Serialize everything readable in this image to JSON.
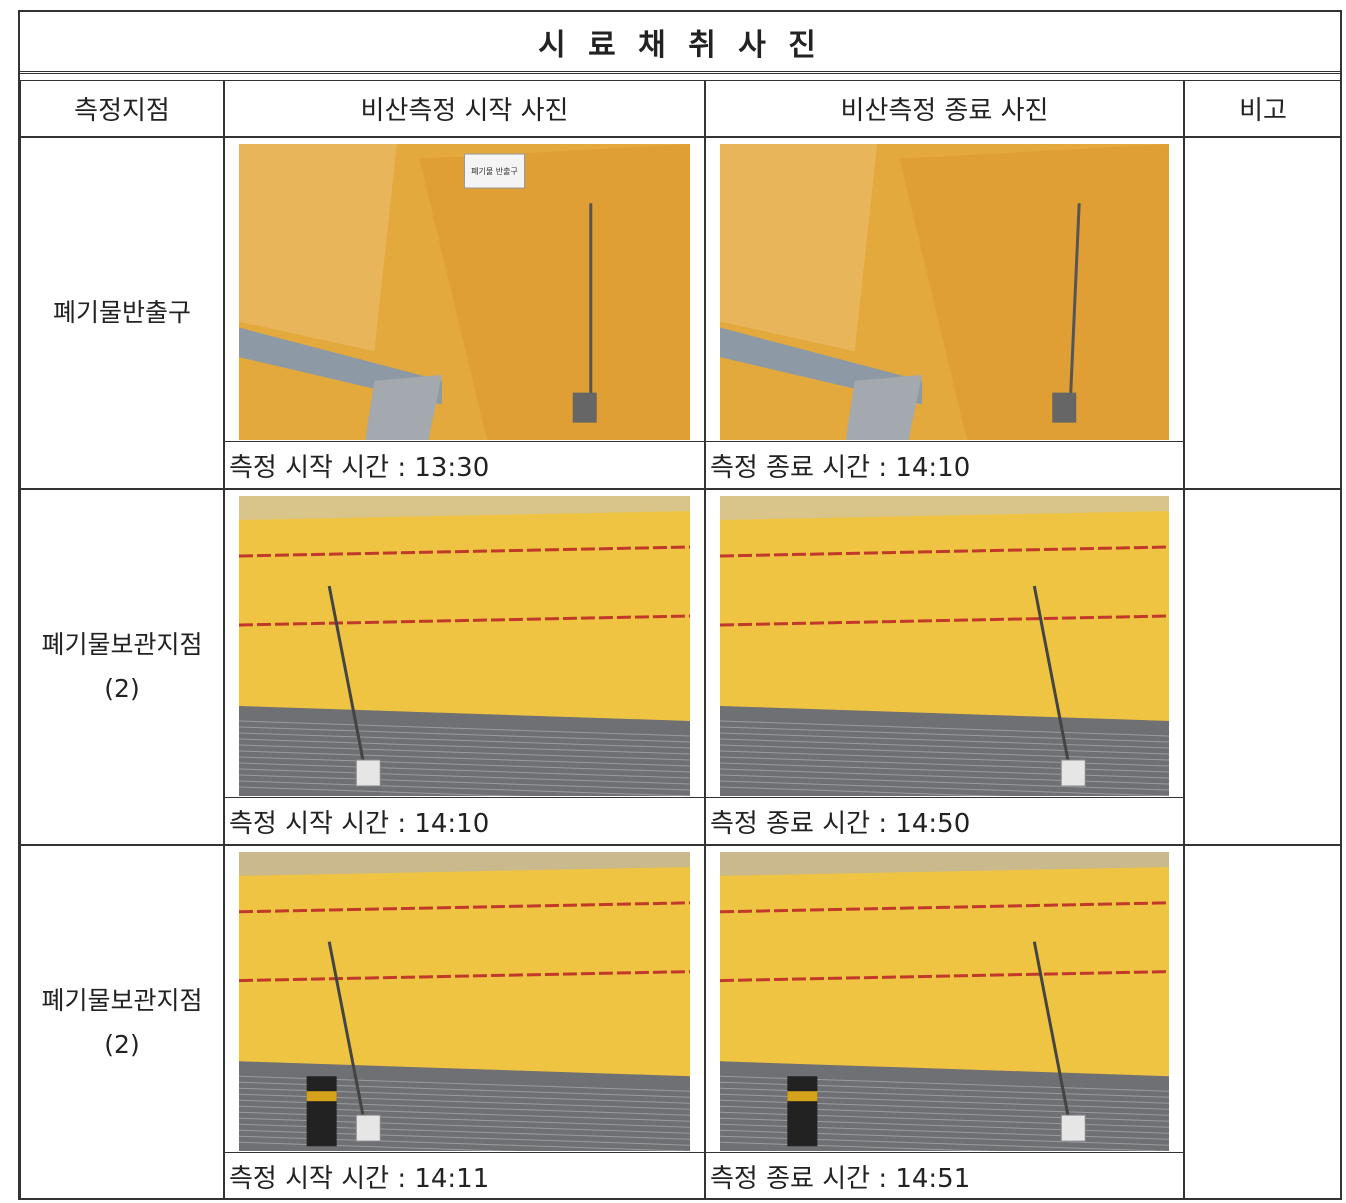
{
  "header": {
    "title": "시 료 채 취 사 진"
  },
  "table": {
    "columns": [
      "측정지점",
      "비산측정 시작 사진",
      "비산측정 종료 사진",
      "비고"
    ],
    "rows": [
      {
        "location": [
          "폐기물반출구"
        ],
        "start_caption": "측정 시작 시간 : 13:30",
        "end_caption": "측정 종료 시간 : 14:10",
        "sign": "폐기물 반출구"
      },
      {
        "location": [
          "폐기물보관지점",
          "(2)"
        ],
        "start_caption": "측정 시작 시간 : 14:10",
        "end_caption": "측정 종료 시간 : 14:50"
      },
      {
        "location": [
          "폐기물보관지점",
          "(2)"
        ],
        "start_caption": "측정 시작 시간 : 14:11",
        "end_caption": "측정 종료 시간 : 14:51"
      }
    ]
  }
}
